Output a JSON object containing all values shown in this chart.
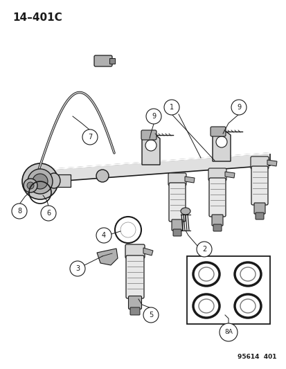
{
  "title_text": "14–401C",
  "footer_text": "95614  401",
  "bg_color": "#ffffff",
  "line_color": "#1a1a1a",
  "gray_light": "#d8d8d8",
  "gray_mid": "#b0b0b0",
  "gray_dark": "#888888"
}
